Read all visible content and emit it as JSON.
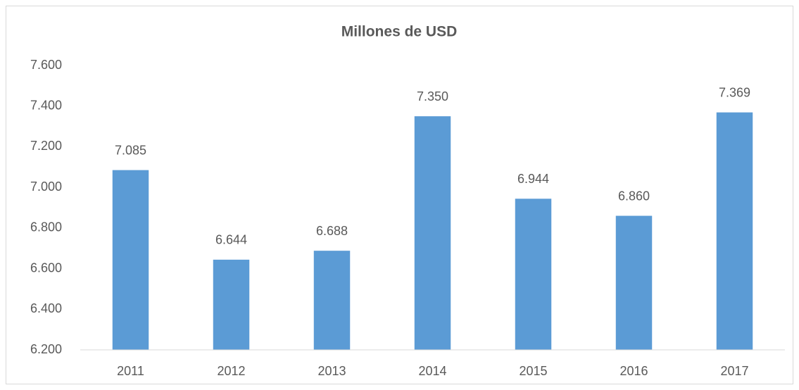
{
  "chart_data": {
    "type": "bar",
    "title": "Millones de USD",
    "categories": [
      "2011",
      "2012",
      "2013",
      "2014",
      "2015",
      "2016",
      "2017"
    ],
    "values": [
      7085,
      6644,
      6688,
      7350,
      6944,
      6860,
      7369
    ],
    "value_labels": [
      "7.085",
      "6.644",
      "6.688",
      "7.350",
      "6.944",
      "6.860",
      "7.369"
    ],
    "color": "#5b9bd5",
    "ylim": [
      6200,
      7600
    ],
    "yticks": [
      {
        "value": 6200,
        "label": "6.200"
      },
      {
        "value": 6400,
        "label": "6.400"
      },
      {
        "value": 6600,
        "label": "6.600"
      },
      {
        "value": 6800,
        "label": "6.800"
      },
      {
        "value": 7000,
        "label": "7.000"
      },
      {
        "value": 7200,
        "label": "7.200"
      },
      {
        "value": 7400,
        "label": "7.400"
      },
      {
        "value": 7600,
        "label": "7.600"
      }
    ],
    "grid": false
  }
}
